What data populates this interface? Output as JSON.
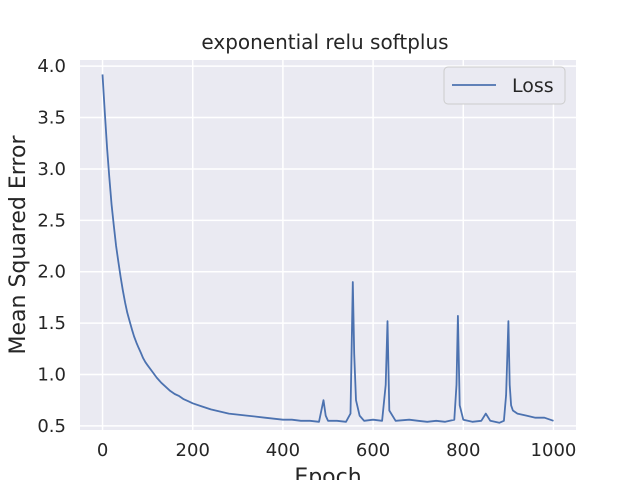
{
  "chart_data": {
    "type": "line",
    "title": "exponential relu softplus",
    "xlabel": "Epoch",
    "ylabel": "Mean Squared Error",
    "xlim": [
      -50,
      1050
    ],
    "ylim": [
      0.46,
      4.06
    ],
    "xticks": [
      0,
      200,
      400,
      600,
      800,
      1000
    ],
    "yticks": [
      0.5,
      1.0,
      1.5,
      2.0,
      2.5,
      3.0,
      3.5,
      4.0
    ],
    "xtick_labels": [
      "0",
      "200",
      "400",
      "600",
      "800",
      "1000"
    ],
    "ytick_labels": [
      "0.5",
      "1.0",
      "1.5",
      "2.0",
      "2.5",
      "3.0",
      "3.5",
      "4.0"
    ],
    "grid": true,
    "legend_position": "upper-right",
    "series": [
      {
        "name": "Loss",
        "color": "#4c72b0",
        "x": [
          0,
          5,
          10,
          15,
          20,
          25,
          30,
          35,
          40,
          45,
          50,
          55,
          60,
          65,
          70,
          75,
          80,
          85,
          90,
          95,
          100,
          110,
          120,
          130,
          140,
          150,
          160,
          170,
          180,
          190,
          200,
          220,
          240,
          260,
          280,
          300,
          320,
          340,
          360,
          380,
          400,
          420,
          440,
          460,
          480,
          490,
          495,
          500,
          520,
          540,
          550,
          555,
          558,
          562,
          570,
          580,
          600,
          620,
          628,
          632,
          636,
          650,
          680,
          700,
          720,
          740,
          760,
          780,
          785,
          788,
          792,
          800,
          820,
          840,
          850,
          860,
          870,
          880,
          890,
          895,
          900,
          903,
          906,
          910,
          920,
          940,
          960,
          980,
          1000
        ],
        "y": [
          3.92,
          3.55,
          3.2,
          2.92,
          2.65,
          2.45,
          2.25,
          2.1,
          1.95,
          1.82,
          1.7,
          1.6,
          1.52,
          1.44,
          1.37,
          1.31,
          1.26,
          1.21,
          1.16,
          1.12,
          1.09,
          1.03,
          0.97,
          0.92,
          0.88,
          0.84,
          0.81,
          0.79,
          0.76,
          0.74,
          0.72,
          0.69,
          0.66,
          0.64,
          0.62,
          0.61,
          0.6,
          0.59,
          0.58,
          0.57,
          0.56,
          0.56,
          0.55,
          0.55,
          0.54,
          0.75,
          0.6,
          0.55,
          0.55,
          0.54,
          0.62,
          1.9,
          1.2,
          0.75,
          0.6,
          0.55,
          0.56,
          0.55,
          0.9,
          1.52,
          0.65,
          0.55,
          0.56,
          0.55,
          0.54,
          0.55,
          0.54,
          0.56,
          0.9,
          1.57,
          0.7,
          0.56,
          0.54,
          0.55,
          0.62,
          0.55,
          0.54,
          0.53,
          0.55,
          0.8,
          1.52,
          0.9,
          0.7,
          0.65,
          0.62,
          0.6,
          0.58,
          0.58,
          0.55
        ]
      }
    ]
  }
}
